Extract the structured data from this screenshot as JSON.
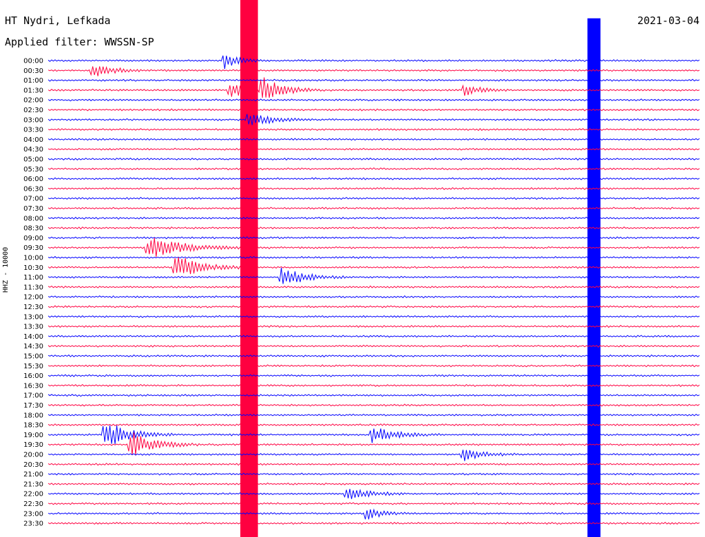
{
  "header": {
    "station": "HT Nydri, Lefkada",
    "date": "2021-03-04",
    "filter_label": "Applied filter: WWSSN-SP"
  },
  "chart_data": {
    "type": "line",
    "ylabel": "HHZ - 10000",
    "colors": [
      "#0000ff",
      "#ff0040"
    ],
    "trace_labels": [
      "00:00",
      "00:30",
      "01:00",
      "01:30",
      "02:00",
      "02:30",
      "03:00",
      "03:30",
      "04:00",
      "04:30",
      "05:00",
      "05:30",
      "06:00",
      "06:30",
      "07:00",
      "07:30",
      "08:00",
      "08:30",
      "09:00",
      "09:30",
      "10:00",
      "10:30",
      "11:00",
      "11:30",
      "12:00",
      "12:30",
      "13:00",
      "13:30",
      "14:00",
      "14:30",
      "15:00",
      "15:30",
      "16:00",
      "16:30",
      "17:00",
      "17:30",
      "18:00",
      "18:30",
      "19:00",
      "19:30",
      "20:00",
      "20:30",
      "21:00",
      "21:30",
      "22:00",
      "22:30",
      "23:00",
      "23:30"
    ],
    "trace_minutes": 30,
    "events": [
      {
        "trace": 0,
        "t": 0.27,
        "amp": 3.0,
        "dur": 0.04
      },
      {
        "trace": 1,
        "t": 0.07,
        "amp": 2.4,
        "dur": 0.06
      },
      {
        "trace": 3,
        "t": 0.28,
        "amp": 3.0,
        "dur": 0.05
      },
      {
        "trace": 3,
        "t": 0.33,
        "amp": 4.5,
        "dur": 0.06
      },
      {
        "trace": 3,
        "t": 0.64,
        "amp": 2.0,
        "dur": 0.05
      },
      {
        "trace": 6,
        "t": 0.31,
        "amp": 3.0,
        "dur": 0.06
      },
      {
        "trace": 19,
        "t": 0.16,
        "amp": 3.6,
        "dur": 0.12
      },
      {
        "trace": 21,
        "t": 0.2,
        "amp": 4.0,
        "dur": 0.08
      },
      {
        "trace": 22,
        "t": 0.36,
        "amp": 3.6,
        "dur": 0.07
      },
      {
        "trace": 38,
        "t": 0.09,
        "amp": 5.0,
        "dur": 0.07
      },
      {
        "trace": 39,
        "t": 0.13,
        "amp": 4.5,
        "dur": 0.07
      },
      {
        "trace": 38,
        "t": 0.5,
        "amp": 3.0,
        "dur": 0.07
      },
      {
        "trace": 40,
        "t": 0.64,
        "amp": 2.4,
        "dur": 0.06
      },
      {
        "trace": 44,
        "t": 0.46,
        "amp": 2.6,
        "dur": 0.06
      },
      {
        "trace": 46,
        "t": 0.49,
        "amp": 2.2,
        "dur": 0.05
      }
    ],
    "saturated_blocks": [
      {
        "trace_start": 0,
        "trace_end": 47,
        "t_start": 0.295,
        "t_end": 0.322,
        "color": "#ff0040"
      },
      {
        "trace_start": 2,
        "trace_end": 47,
        "t_start": 0.828,
        "t_end": 0.848,
        "color": "#0000ff"
      }
    ],
    "grid": false
  }
}
